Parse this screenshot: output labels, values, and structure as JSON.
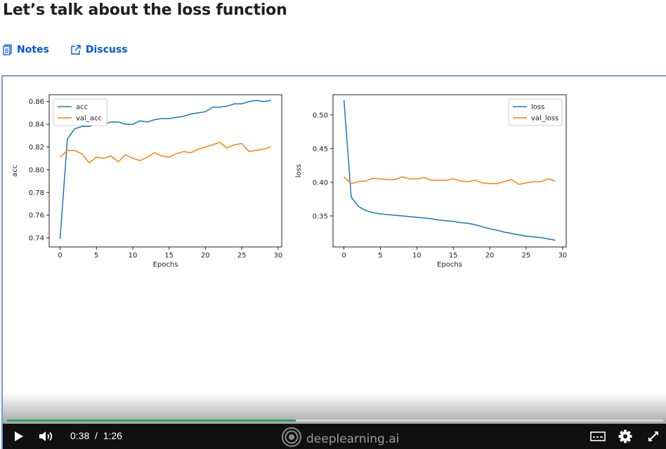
{
  "page": {
    "title": "Let’s talk about the loss function",
    "tabs": [
      {
        "label": "Notes",
        "icon": "notes-icon"
      },
      {
        "label": "Discuss",
        "icon": "external-link-icon"
      }
    ]
  },
  "player": {
    "current_time": "0:38",
    "separator": "/",
    "duration": "1:26",
    "progress": 0.44,
    "brand": "deeplearning.ai",
    "colors": {
      "progress": "#2aa565",
      "controls_bg": "#101010",
      "frame_border": "#6f9bea"
    }
  },
  "chart_data": [
    {
      "type": "line",
      "xlabel": "Epochs",
      "ylabel": "acc",
      "xlim": [
        -1.5,
        30.5
      ],
      "ylim": [
        0.732,
        0.866
      ],
      "xticks": [
        0,
        5,
        10,
        15,
        20,
        25,
        30
      ],
      "yticks": [
        0.74,
        0.76,
        0.78,
        0.8,
        0.82,
        0.84,
        0.86
      ],
      "legend_position": "top-left",
      "x": [
        0,
        1,
        2,
        3,
        4,
        5,
        6,
        7,
        8,
        9,
        10,
        11,
        12,
        13,
        14,
        15,
        16,
        17,
        18,
        19,
        20,
        21,
        22,
        23,
        24,
        25,
        26,
        27,
        28,
        29
      ],
      "series": [
        {
          "name": "acc",
          "color": "#1f77b4",
          "values": [
            0.739,
            0.827,
            0.836,
            0.838,
            0.838,
            0.84,
            0.84,
            0.842,
            0.842,
            0.84,
            0.84,
            0.843,
            0.842,
            0.844,
            0.845,
            0.845,
            0.846,
            0.847,
            0.849,
            0.85,
            0.851,
            0.855,
            0.855,
            0.856,
            0.858,
            0.858,
            0.86,
            0.861,
            0.86,
            0.861
          ]
        },
        {
          "name": "val_acc",
          "color": "#ff7f0e",
          "values": [
            0.811,
            0.817,
            0.817,
            0.814,
            0.806,
            0.811,
            0.81,
            0.812,
            0.807,
            0.813,
            0.81,
            0.808,
            0.811,
            0.815,
            0.812,
            0.811,
            0.814,
            0.816,
            0.815,
            0.818,
            0.82,
            0.822,
            0.824,
            0.819,
            0.822,
            0.823,
            0.816,
            0.817,
            0.818,
            0.82
          ]
        }
      ]
    },
    {
      "type": "line",
      "xlabel": "Epochs",
      "ylabel": "loss",
      "xlim": [
        -1.5,
        30.5
      ],
      "ylim": [
        0.304,
        0.53
      ],
      "xticks": [
        0,
        5,
        10,
        15,
        20,
        25,
        30
      ],
      "yticks": [
        0.35,
        0.4,
        0.45,
        0.5
      ],
      "legend_position": "top-right",
      "x": [
        0,
        1,
        2,
        3,
        4,
        5,
        6,
        7,
        8,
        9,
        10,
        11,
        12,
        13,
        14,
        15,
        16,
        17,
        18,
        19,
        20,
        21,
        22,
        23,
        24,
        25,
        26,
        27,
        28,
        29
      ],
      "series": [
        {
          "name": "loss",
          "color": "#1f77b4",
          "values": [
            0.522,
            0.378,
            0.364,
            0.358,
            0.355,
            0.353,
            0.352,
            0.351,
            0.35,
            0.349,
            0.348,
            0.347,
            0.346,
            0.344,
            0.343,
            0.342,
            0.34,
            0.339,
            0.337,
            0.334,
            0.331,
            0.329,
            0.326,
            0.324,
            0.322,
            0.32,
            0.319,
            0.318,
            0.316,
            0.314
          ]
        },
        {
          "name": "val_loss",
          "color": "#ff7f0e",
          "values": [
            0.408,
            0.398,
            0.401,
            0.402,
            0.406,
            0.405,
            0.404,
            0.404,
            0.408,
            0.405,
            0.405,
            0.407,
            0.403,
            0.403,
            0.403,
            0.405,
            0.402,
            0.401,
            0.403,
            0.399,
            0.398,
            0.398,
            0.401,
            0.404,
            0.397,
            0.399,
            0.401,
            0.401,
            0.405,
            0.402
          ]
        }
      ]
    }
  ]
}
